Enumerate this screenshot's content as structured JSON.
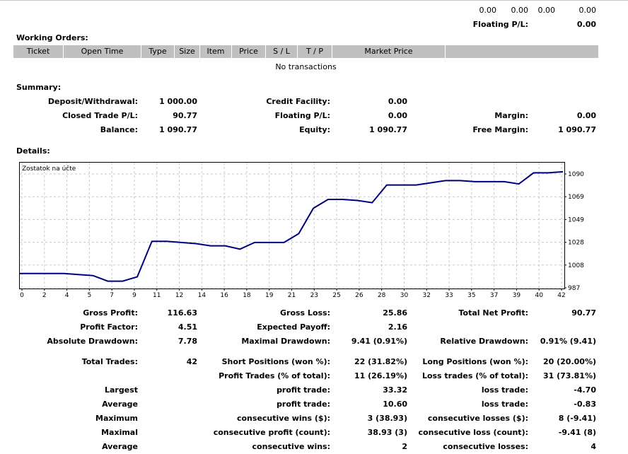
{
  "top": {
    "values": [
      "0.00",
      "0.00",
      "0.00",
      "0.00"
    ],
    "floating_label": "Floating P/L:",
    "floating_value": "0.00"
  },
  "working_orders": {
    "title": "Working Orders:",
    "columns": [
      "Ticket",
      "Open Time",
      "Type",
      "Size",
      "Item",
      "Price",
      "S / L",
      "T / P",
      "Market Price"
    ],
    "empty_text": "No transactions"
  },
  "summary": {
    "title": "Summary:",
    "deposit_label": "Deposit/Withdrawal:",
    "deposit_value": "1 000.00",
    "credit_label": "Credit Facility:",
    "credit_value": "0.00",
    "closed_label": "Closed Trade P/L:",
    "closed_value": "90.77",
    "floating_label": "Floating P/L:",
    "floating_value": "0.00",
    "margin_label": "Margin:",
    "margin_value": "0.00",
    "balance_label": "Balance:",
    "balance_value": "1 090.77",
    "equity_label": "Equity:",
    "equity_value": "1 090.77",
    "free_margin_label": "Free Margin:",
    "free_margin_value": "1 090.77"
  },
  "details": {
    "title": "Details:"
  },
  "chart_data": {
    "type": "line",
    "title": "Zostatok na účte",
    "x_ticks": [
      "0",
      "2",
      "4",
      "5",
      "7",
      "9",
      "11",
      "12",
      "14",
      "16",
      "18",
      "19",
      "21",
      "23",
      "25",
      "26",
      "28",
      "30",
      "32",
      "33",
      "35",
      "37",
      "39",
      "40",
      "42"
    ],
    "y_ticks": [
      "1090",
      "1069",
      "1049",
      "1028",
      "1008",
      "987"
    ],
    "ylim": [
      987,
      1090
    ],
    "grid": true,
    "series": [
      {
        "values": [
          1000,
          1000,
          1000,
          1000,
          999,
          998,
          993,
          993,
          997,
          1029,
          1029,
          1028,
          1027,
          1025,
          1025,
          1022,
          1028,
          1028,
          1028,
          1036,
          1059,
          1067,
          1067,
          1066,
          1064,
          1080,
          1080,
          1080,
          1082,
          1084,
          1084,
          1083,
          1083,
          1083,
          1081,
          1091,
          1091,
          1092
        ]
      }
    ],
    "color": "#00007f"
  },
  "stats": {
    "gross_profit_label": "Gross Profit:",
    "gross_profit_value": "116.63",
    "gross_loss_label": "Gross Loss:",
    "gross_loss_value": "25.86",
    "total_net_label": "Total Net Profit:",
    "total_net_value": "90.77",
    "profit_factor_label": "Profit Factor:",
    "profit_factor_value": "4.51",
    "expected_payoff_label": "Expected Payoff:",
    "expected_payoff_value": "2.16",
    "abs_dd_label": "Absolute Drawdown:",
    "abs_dd_value": "7.78",
    "max_dd_label": "Maximal Drawdown:",
    "max_dd_value": "9.41 (0.91%)",
    "rel_dd_label": "Relative Drawdown:",
    "rel_dd_value": "0.91% (9.41)",
    "total_trades_label": "Total Trades:",
    "total_trades_value": "42",
    "short_label": "Short Positions (won %):",
    "short_value": "22 (31.82%)",
    "long_label": "Long Positions (won %):",
    "long_value": "20 (20.00%)",
    "profit_trades_label": "Profit Trades (% of total):",
    "profit_trades_value": "11 (26.19%)",
    "loss_trades_label": "Loss trades (% of total):",
    "loss_trades_value": "31 (73.81%)",
    "largest_label": "Largest",
    "largest_profit_label": "profit trade:",
    "largest_profit_value": "33.32",
    "largest_loss_label": "loss trade:",
    "largest_loss_value": "-4.70",
    "average_label": "Average",
    "average_profit_label": "profit trade:",
    "average_profit_value": "10.60",
    "average_loss_label": "loss trade:",
    "average_loss_value": "-0.83",
    "maximum_label": "Maximum",
    "max_cons_wins_label": "consecutive wins ($):",
    "max_cons_wins_value": "3 (38.93)",
    "max_cons_losses_label": "consecutive losses ($):",
    "max_cons_losses_value": "8 (-9.41)",
    "maximal_label": "Maximal",
    "maximal_profit_label": "consecutive profit (count):",
    "maximal_profit_value": "38.93 (3)",
    "maximal_loss_label": "consecutive loss (count):",
    "maximal_loss_value": "-9.41 (8)",
    "average2_label": "Average",
    "avg_cons_wins_label": "consecutive wins:",
    "avg_cons_wins_value": "2",
    "avg_cons_losses_label": "consecutive losses:",
    "avg_cons_losses_value": "4"
  }
}
